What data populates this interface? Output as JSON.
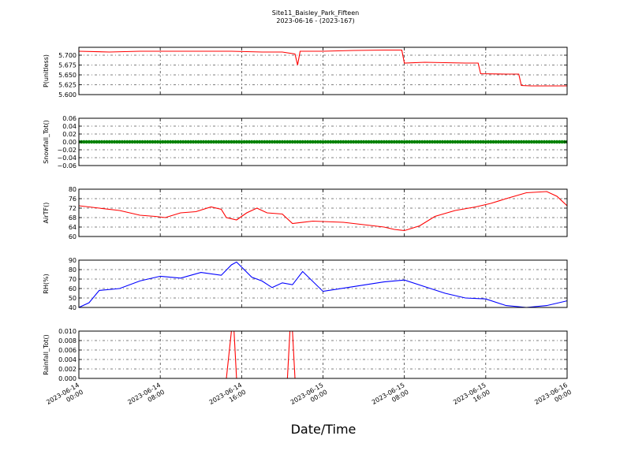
{
  "title": "Site11_Baisley_Park_Fifteen",
  "subtitle": "2023-06-16 - (2023-167)",
  "xlabel": "Date/Time",
  "x_ticks": [
    {
      "line1": "2023-06-14",
      "line2": "00:00"
    },
    {
      "line1": "2023-06-14",
      "line2": "08:00"
    },
    {
      "line1": "2023-06-14",
      "line2": "16:00"
    },
    {
      "line1": "2023-06-15",
      "line2": "00:00"
    },
    {
      "line1": "2023-06-15",
      "line2": "08:00"
    },
    {
      "line1": "2023-06-15",
      "line2": "16:00"
    },
    {
      "line1": "2023-06-16",
      "line2": "00:00"
    }
  ],
  "chart_data": [
    {
      "type": "line",
      "ylabel": "P(unitless)",
      "ylim": [
        5.6,
        5.72
      ],
      "yticks": [
        "5.600",
        "5.625",
        "5.650",
        "5.675",
        "5.700"
      ],
      "ytick_values": [
        5.6,
        5.625,
        5.65,
        5.675,
        5.7
      ],
      "xlim": [
        "2023-06-14 00:00",
        "2023-06-16 00:00"
      ],
      "grid": true,
      "color": "#ff0000",
      "x": [
        "2023-06-14 00:00",
        "2023-06-14 03:00",
        "2023-06-14 06:00",
        "2023-06-14 09:00",
        "2023-06-14 12:00",
        "2023-06-14 15:00",
        "2023-06-14 18:00",
        "2023-06-14 20:00",
        "2023-06-14 21:15",
        "2023-06-14 21:30",
        "2023-06-14 21:45",
        "2023-06-15 00:00",
        "2023-06-15 03:00",
        "2023-06-15 06:00",
        "2023-06-15 07:45",
        "2023-06-15 08:00",
        "2023-06-15 10:00",
        "2023-06-15 12:00",
        "2023-06-15 14:00",
        "2023-06-15 15:15",
        "2023-06-15 15:30",
        "2023-06-15 18:00",
        "2023-06-15 19:15",
        "2023-06-15 19:30",
        "2023-06-15 20:30",
        "2023-06-15 22:00",
        "2023-06-16 00:00"
      ],
      "values": [
        5.71,
        5.708,
        5.71,
        5.71,
        5.71,
        5.71,
        5.708,
        5.708,
        5.703,
        5.675,
        5.71,
        5.71,
        5.712,
        5.713,
        5.713,
        5.68,
        5.682,
        5.681,
        5.68,
        5.68,
        5.653,
        5.652,
        5.652,
        5.623,
        5.622,
        5.622,
        5.622
      ]
    },
    {
      "type": "scatter",
      "ylabel": "Snowfall_Tot()",
      "ylim": [
        -0.06,
        0.06
      ],
      "yticks": [
        "−0.06",
        "−0.04",
        "−0.02",
        "0.00",
        "0.02",
        "0.04",
        "0.06"
      ],
      "ytick_values": [
        -0.06,
        -0.04,
        -0.02,
        0,
        0.02,
        0.04,
        0.06
      ],
      "xlim": [
        "2023-06-14 00:00",
        "2023-06-16 00:00"
      ],
      "grid": true,
      "color": "#008000",
      "x": [
        "2023-06-14 00:00",
        "2023-06-16 00:00"
      ],
      "values": [
        0,
        0
      ],
      "note_values": "constant 0.00 every 15 minutes"
    },
    {
      "type": "line",
      "ylabel": "AirTF()",
      "ylim": [
        60,
        80
      ],
      "yticks": [
        "60",
        "64",
        "68",
        "72",
        "76",
        "80"
      ],
      "ytick_values": [
        60,
        64,
        68,
        72,
        76,
        80
      ],
      "xlim": [
        "2023-06-14 00:00",
        "2023-06-16 00:00"
      ],
      "grid": true,
      "color": "#ff0000",
      "x": [
        "2023-06-14 00:00",
        "2023-06-14 02:00",
        "2023-06-14 04:00",
        "2023-06-14 06:00",
        "2023-06-14 07:30",
        "2023-06-14 08:30",
        "2023-06-14 10:00",
        "2023-06-14 11:30",
        "2023-06-14 13:00",
        "2023-06-14 14:00",
        "2023-06-14 14:30",
        "2023-06-14 15:30",
        "2023-06-14 16:30",
        "2023-06-14 17:30",
        "2023-06-14 18:30",
        "2023-06-14 20:00",
        "2023-06-14 21:00",
        "2023-06-14 23:00",
        "2023-06-15 02:00",
        "2023-06-15 04:00",
        "2023-06-15 06:00",
        "2023-06-15 07:00",
        "2023-06-15 08:00",
        "2023-06-15 09:30",
        "2023-06-15 11:00",
        "2023-06-15 13:00",
        "2023-06-15 15:00",
        "2023-06-15 16:30",
        "2023-06-15 18:00",
        "2023-06-15 20:00",
        "2023-06-15 22:00",
        "2023-06-15 23:00",
        "2023-06-16 00:00"
      ],
      "values": [
        73,
        72,
        71,
        69,
        68.5,
        68,
        70,
        70.5,
        72.5,
        71.5,
        68,
        67,
        70,
        72,
        70,
        69.5,
        65.5,
        66.5,
        66,
        65,
        64,
        63,
        62.5,
        64.5,
        68.5,
        71,
        72.5,
        74,
        76,
        78.5,
        79,
        77,
        73
      ]
    },
    {
      "type": "line",
      "ylabel": "RH(%)",
      "ylim": [
        40,
        90
      ],
      "yticks": [
        "40",
        "50",
        "60",
        "70",
        "80",
        "90"
      ],
      "ytick_values": [
        40,
        50,
        60,
        70,
        80,
        90
      ],
      "xlim": [
        "2023-06-14 00:00",
        "2023-06-16 00:00"
      ],
      "grid": true,
      "color": "#0000ff",
      "x": [
        "2023-06-14 00:00",
        "2023-06-14 01:00",
        "2023-06-14 02:00",
        "2023-06-14 04:00",
        "2023-06-14 06:00",
        "2023-06-14 08:00",
        "2023-06-14 10:00",
        "2023-06-14 12:00",
        "2023-06-14 14:00",
        "2023-06-14 15:00",
        "2023-06-14 15:30",
        "2023-06-14 17:00",
        "2023-06-14 18:00",
        "2023-06-14 19:00",
        "2023-06-14 20:00",
        "2023-06-14 21:00",
        "2023-06-14 22:00",
        "2023-06-15 00:00",
        "2023-06-15 03:00",
        "2023-06-15 06:00",
        "2023-06-15 08:00",
        "2023-06-15 10:00",
        "2023-06-15 12:00",
        "2023-06-15 14:00",
        "2023-06-15 16:00",
        "2023-06-15 18:00",
        "2023-06-15 20:00",
        "2023-06-15 22:00",
        "2023-06-16 00:00"
      ],
      "values": [
        40,
        45,
        58,
        60,
        68,
        73,
        71,
        77,
        74,
        85,
        88,
        72,
        68,
        61,
        66,
        64,
        78,
        57,
        62,
        67,
        69,
        62,
        55,
        50,
        49,
        42,
        40,
        42,
        47
      ]
    },
    {
      "type": "line",
      "ylabel": "Rainfall_Tot()",
      "ylim": [
        0,
        0.01
      ],
      "yticks": [
        "0.000",
        "0.002",
        "0.004",
        "0.006",
        "0.008",
        "0.010"
      ],
      "ytick_values": [
        0,
        0.002,
        0.004,
        0.006,
        0.008,
        0.01
      ],
      "xlim": [
        "2023-06-14 00:00",
        "2023-06-16 00:00"
      ],
      "grid": true,
      "color": "#ff0000",
      "x": [
        "2023-06-14 00:00",
        "2023-06-14 14:30",
        "2023-06-14 15:00",
        "2023-06-14 15:15",
        "2023-06-14 15:30",
        "2023-06-14 20:30",
        "2023-06-14 20:45",
        "2023-06-14 21:00",
        "2023-06-14 21:15",
        "2023-06-16 00:00"
      ],
      "values": [
        0,
        0,
        0.01,
        0.01,
        0,
        0,
        0.01,
        0.01,
        0,
        0
      ]
    }
  ]
}
